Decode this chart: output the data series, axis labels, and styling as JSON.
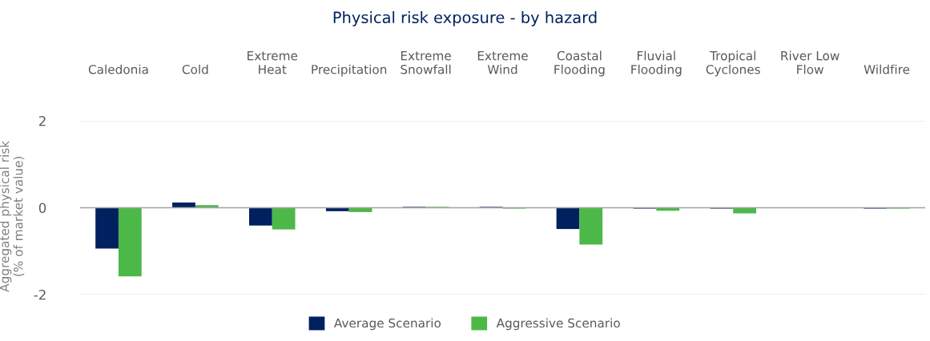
{
  "chart_data": {
    "type": "bar",
    "title": "Physical risk exposure - by hazard",
    "ylabel": "Aggregated physical risk\n(% of market value)",
    "categories": [
      "Caledonia",
      "Cold",
      "Extreme Heat",
      "Precipitation",
      "Extreme Snowfall",
      "Extreme Wind",
      "Coastal Flooding",
      "Fluvial Flooding",
      "Tropical Cyclones",
      "River Low Flow",
      "Wildfire"
    ],
    "series": [
      {
        "name": "Average Scenario",
        "color": "#002060",
        "values": [
          -0.94,
          0.12,
          -0.41,
          -0.08,
          0.02,
          0.02,
          -0.49,
          -0.02,
          -0.02,
          0,
          -0.02
        ]
      },
      {
        "name": "Aggressive Scenario",
        "color": "#4cb848",
        "values": [
          -1.58,
          0.06,
          -0.5,
          -0.1,
          0.02,
          -0.02,
          -0.85,
          -0.07,
          -0.13,
          0,
          -0.02
        ]
      }
    ],
    "ylim": [
      -2,
      2
    ],
    "yticks": [
      {
        "value": -2,
        "label": "-2"
      },
      0,
      2
    ],
    "grid": "y",
    "legend": "bottom"
  }
}
